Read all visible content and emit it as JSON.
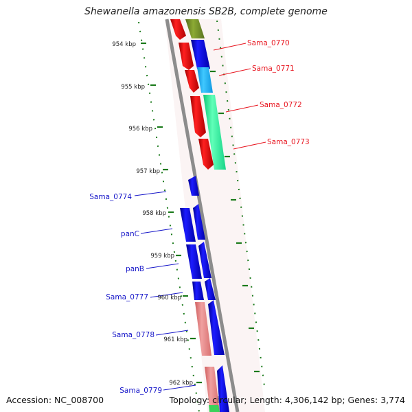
{
  "title": "Shewanella amazonensis SB2B, complete genome",
  "footer": {
    "accession": "Accession: NC_008700",
    "topology": "Topology: circular; Length: 4,306,142 bp; Genes: 3,774"
  },
  "colors": {
    "backbone": "#8c8c8c",
    "tick_green": "#1a7a1a",
    "label_red": "#e8141e",
    "label_blue": "#1414c8"
  },
  "scale_unit": "kbp",
  "kbp_ticks": [
    "954 kbp",
    "955 kbp",
    "956 kbp",
    "957 kbp",
    "958 kbp",
    "959 kbp",
    "960 kbp",
    "961 kbp",
    "962 kbp"
  ],
  "gene_labels_right": [
    "Sama_0770",
    "Sama_0771",
    "Sama_0772",
    "Sama_0773"
  ],
  "gene_labels_left": [
    "Sama_0774",
    "panC",
    "panB",
    "Sama_0777",
    "Sama_0778",
    "Sama_0779"
  ]
}
